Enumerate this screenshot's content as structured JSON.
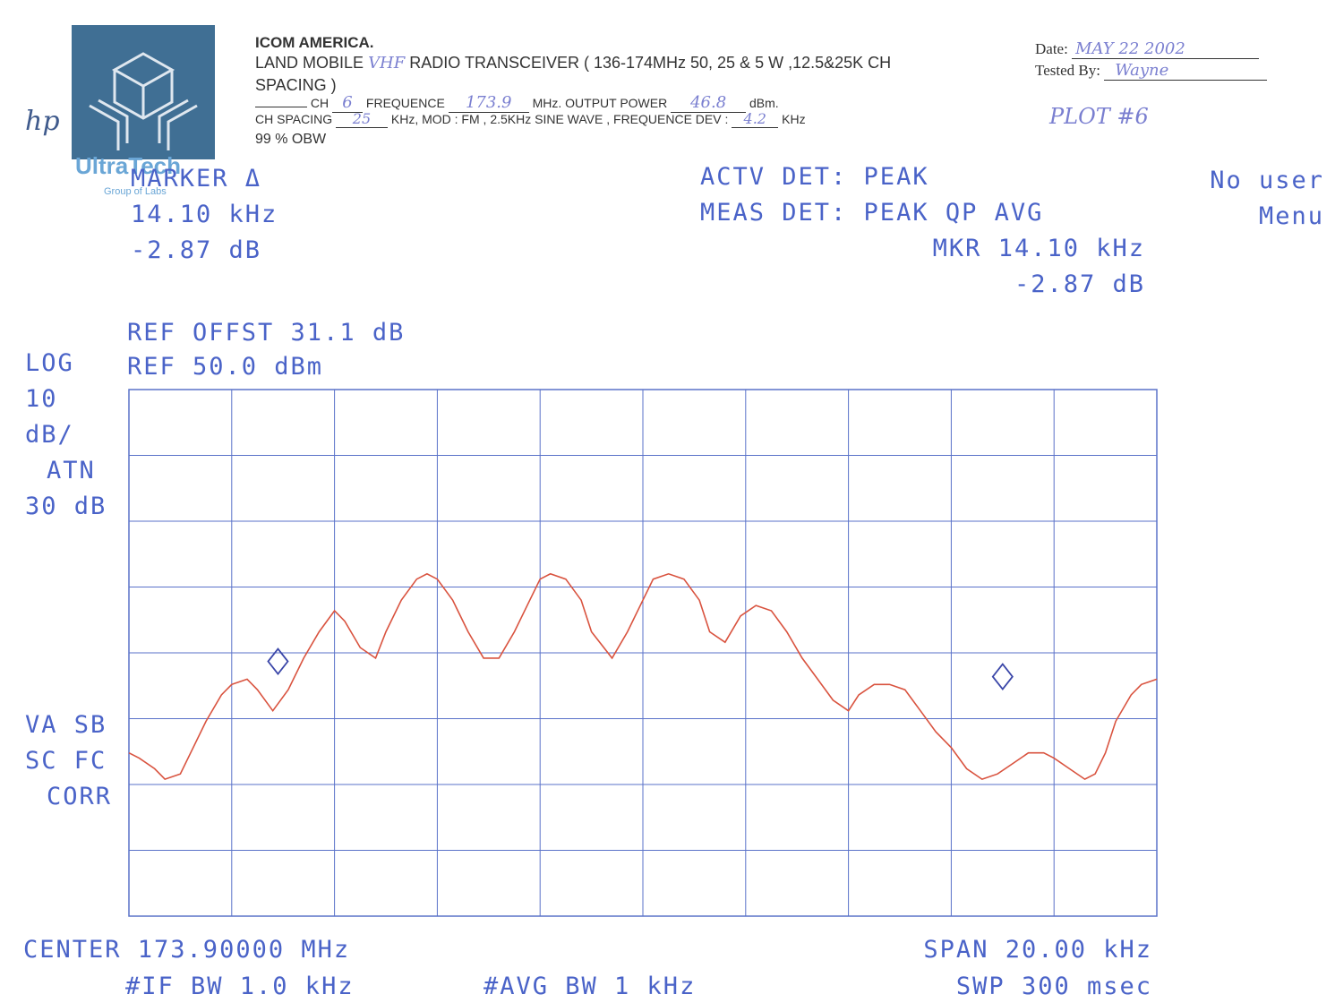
{
  "header": {
    "company": "ICOM AMERICA.",
    "line1_a": "LAND MOBILE",
    "line1_hand": "VHF",
    "line1_b": "RADIO TRANSCEIVER ( 136-174MHz 50, 25 & 5 W ,12.5&25K  CH",
    "line2": "SPACING )",
    "ch_label": "CH",
    "ch_value": "6",
    "freq_label": "FREQUENCE",
    "freq_value": "173.9",
    "mhz_label": "MHz. OUTPUT POWER",
    "power_value": "46.8",
    "dbm_label": "dBm.",
    "chsp_label": "CH SPACING",
    "chsp_value": "25",
    "mod_text": "KHz, MOD : FM , 2.5KHz SINE WAVE , FREQUENCE DEV :",
    "dev_value": "4.2",
    "khz_label": "KHz",
    "obw": "99 % OBW",
    "date_label": "Date:",
    "date_value": "MAY 22 2002",
    "tested_label": "Tested By:",
    "tested_value": "Wayne",
    "plot_no": "PLOT #6",
    "hp": "hp",
    "watermark": "UltraTech",
    "watermark_sub": "Group of Labs"
  },
  "analyzer": {
    "marker_title": "MARKER Δ",
    "marker_freq": "14.10 kHz",
    "marker_level": "-2.87 dB",
    "actv_det": "ACTV DET:  PEAK",
    "meas_det": "MEAS DET:  PEAK QP AVG",
    "mkr_freq": "MKR 14.10 kHz",
    "mkr_level": "-2.87 dB",
    "no_user": "No user",
    "menu": "Menu",
    "ref_offst": "REF OFFST 31.1 dB",
    "log": "LOG",
    "ref": "REF 50.0 dBm",
    "scale1": "10",
    "scale2": "dB/",
    "atn1": "ATN",
    "atn2": "30 dB",
    "va_sb": "VA SB",
    "sc_fc": "SC FC",
    "corr": "CORR",
    "center": "CENTER 173.90000 MHz",
    "span": "SPAN 20.00 kHz",
    "if_bw": "#IF BW 1.0 kHz",
    "avg_bw": "#AVG BW 1 kHz",
    "swp": "SWP 300 msec"
  },
  "chart_data": {
    "type": "line",
    "x_unit": "kHz offset from center",
    "y_unit": "dBm",
    "xlim": [
      -10,
      10
    ],
    "ylim": [
      -50,
      50
    ],
    "x_divisions": 10,
    "y_divisions": 8,
    "grid": true,
    "trace_color": "#d9533f",
    "grid_color": "#5a72c9",
    "marker_color": "#3a46a8",
    "series": [
      {
        "x": [
          -10.0,
          -9.8,
          -9.5,
          -9.3,
          -9.0,
          -8.8,
          -8.5,
          -8.2,
          -8.0,
          -7.7,
          -7.5,
          -7.2,
          -6.9,
          -6.6,
          -6.3,
          -6.0,
          -5.8,
          -5.5,
          -5.2,
          -5.0,
          -4.7,
          -4.4,
          -4.2,
          -4.0,
          -3.7,
          -3.4,
          -3.1,
          -2.8,
          -2.5,
          -2.2,
          -2.0,
          -1.8,
          -1.5,
          -1.2,
          -1.0,
          -0.6,
          -0.3,
          0.0,
          0.2,
          0.5,
          0.8,
          1.1,
          1.3,
          1.6,
          1.9,
          2.2,
          2.5,
          2.8,
          3.1,
          3.4,
          3.7,
          4.0,
          4.2,
          4.5,
          4.8,
          5.1,
          5.4,
          5.7,
          6.0,
          6.3,
          6.6,
          6.9,
          7.2,
          7.5,
          7.8,
          8.0,
          8.3,
          8.6,
          8.8,
          9.0,
          9.2,
          9.5,
          9.7,
          10.0
        ],
        "y": [
          -19,
          -20,
          -22,
          -24,
          -23,
          -19,
          -13,
          -8,
          -6,
          -5,
          -7,
          -11,
          -7,
          -1,
          4,
          8,
          6,
          1,
          -1,
          4,
          10,
          14,
          15,
          14,
          10,
          4,
          -1,
          -1,
          4,
          10,
          14,
          15,
          14,
          10,
          4,
          -1,
          4,
          10,
          14,
          15,
          14,
          10,
          4,
          2,
          7,
          9,
          8,
          4,
          -1,
          -5,
          -9,
          -11,
          -8,
          -6,
          -6,
          -7,
          -11,
          -15,
          -18,
          -22,
          -24,
          -23,
          -21,
          -19,
          -19,
          -20,
          -22,
          -24,
          -23,
          -19,
          -13,
          -8,
          -6,
          -5
        ]
      }
    ],
    "markers": [
      {
        "x": -7.1,
        "y": -4.0
      },
      {
        "x": 7.0,
        "y": -6.9
      }
    ]
  }
}
